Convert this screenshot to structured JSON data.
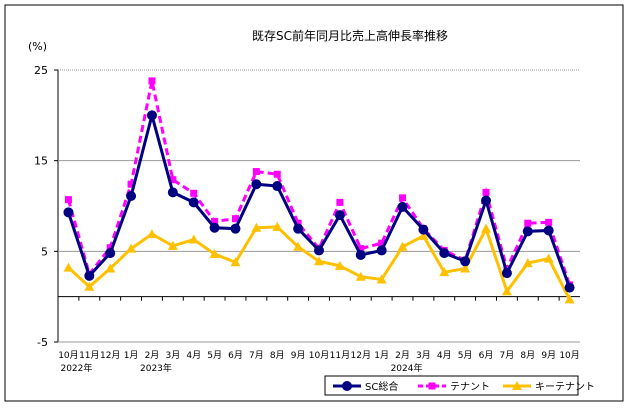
{
  "chart_data": {
    "type": "line",
    "title": "既存SC前年同月比売上高伸長率推移",
    "ylabel": "(%)",
    "xlabel": "",
    "ylim": [
      -5,
      25
    ],
    "yticks": [
      25,
      15,
      5,
      -5
    ],
    "grid": true,
    "legend_position": "bottom-right",
    "categories": [
      "10月",
      "11月",
      "12月",
      "1月",
      "2月",
      "3月",
      "4月",
      "5月",
      "6月",
      "7月",
      "8月",
      "9月",
      "10月",
      "11月",
      "12月",
      "1月",
      "2月",
      "3月",
      "4月",
      "5月",
      "6月",
      "7月",
      "8月",
      "9月",
      "10月"
    ],
    "year_labels": [
      {
        "index": 0,
        "text": "2022年"
      },
      {
        "index": 4,
        "text": "2023年"
      },
      {
        "index": 16,
        "text": "2024年"
      }
    ],
    "series": [
      {
        "name": "SC総合",
        "color": "#000080",
        "marker": "circle",
        "dash": false,
        "values": [
          9.3,
          2.3,
          4.8,
          11.1,
          20.0,
          11.5,
          10.4,
          7.6,
          7.5,
          12.4,
          12.2,
          7.5,
          5.1,
          9.0,
          4.6,
          5.1,
          9.9,
          7.4,
          4.8,
          3.9,
          10.6,
          2.6,
          7.2,
          7.3,
          1.0
        ]
      },
      {
        "name": "テナント",
        "color": "#ff00ff",
        "marker": "square",
        "dash": true,
        "values": [
          10.7,
          2.5,
          5.4,
          12.4,
          23.8,
          12.9,
          11.4,
          8.3,
          8.6,
          13.8,
          13.5,
          8.1,
          5.3,
          10.4,
          5.3,
          5.9,
          10.9,
          7.5,
          5.1,
          4.0,
          11.5,
          3.1,
          8.1,
          8.2,
          1.3
        ]
      },
      {
        "name": "キーテナント",
        "color": "#ffc000",
        "marker": "triangle",
        "dash": false,
        "values": [
          3.2,
          1.1,
          3.1,
          5.3,
          6.9,
          5.6,
          6.3,
          4.7,
          3.8,
          7.6,
          7.7,
          5.5,
          3.9,
          3.4,
          2.2,
          1.9,
          5.5,
          6.7,
          2.7,
          3.1,
          7.5,
          0.6,
          3.7,
          4.2,
          -0.3
        ]
      }
    ]
  }
}
